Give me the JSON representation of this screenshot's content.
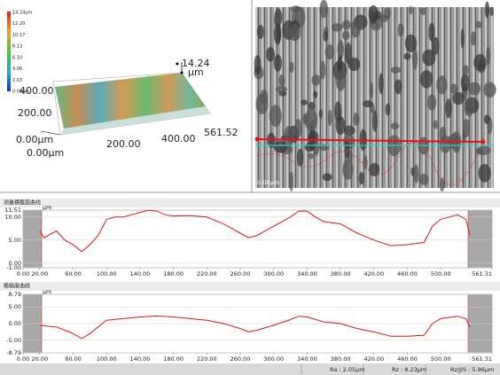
{
  "surface_view": {
    "colorbar_labels": [
      "14.24µm",
      "12.20",
      "10.17",
      "8.13",
      "6.10",
      "4.06",
      "2.03",
      "0.00µm"
    ],
    "z_max": "14.24",
    "z_unit": "µm",
    "y_axis_labels": [
      "400.00",
      "200.00",
      "0.00µm"
    ],
    "x_axis_labels": [
      "0.00µm",
      "200.00",
      "400.00"
    ],
    "x_end_label": "561.52"
  },
  "image_view": {
    "corner_label": "0.00µm"
  },
  "chart_data": [
    {
      "type": "line",
      "title": "测量横截面曲线",
      "y_unit": "µm",
      "color": "#d21a1a",
      "grid": true,
      "x": [
        20,
        25,
        30,
        40,
        50,
        60,
        70,
        80,
        90,
        100,
        110,
        120,
        130,
        140,
        150,
        160,
        170,
        180,
        200,
        220,
        240,
        260,
        270,
        280,
        300,
        320,
        330,
        340,
        350,
        360,
        380,
        400,
        420,
        440,
        460,
        480,
        490,
        500,
        510,
        520,
        530,
        535
      ],
      "values": [
        7,
        5.5,
        6,
        7,
        5,
        4,
        2.5,
        4,
        6,
        9.5,
        10,
        10,
        10.5,
        11,
        11.5,
        11.3,
        10.5,
        10.2,
        10.3,
        10,
        8.5,
        6.5,
        5.5,
        6,
        8,
        10,
        11.3,
        11.3,
        10,
        9,
        8.5,
        6.5,
        5,
        3.8,
        4,
        4.5,
        8,
        9.5,
        10,
        10.5,
        9.5,
        6
      ],
      "xlim": [
        0,
        561.31
      ],
      "ylim": [
        -1,
        11.51
      ],
      "yticks": [
        {
          "value": 11.51,
          "label": "11.51"
        },
        {
          "value": 10,
          "label": "10.00"
        },
        {
          "value": 5,
          "label": "5.00"
        },
        {
          "value": 0,
          "label": "0.00"
        },
        {
          "value": -1,
          "label": "-1.00"
        }
      ],
      "xticks": [
        {
          "value": 0,
          "label": "0.00"
        },
        {
          "value": 20,
          "label": "20.00"
        },
        {
          "value": 60,
          "label": "60.00"
        },
        {
          "value": 100,
          "label": "100.00"
        },
        {
          "value": 140,
          "label": "140.00"
        },
        {
          "value": 180,
          "label": "180.00"
        },
        {
          "value": 220,
          "label": "220.00"
        },
        {
          "value": 260,
          "label": "260.00"
        },
        {
          "value": 300,
          "label": "300.00"
        },
        {
          "value": 340,
          "label": "340.00"
        },
        {
          "value": 380,
          "label": "380.00"
        },
        {
          "value": 420,
          "label": "420.00"
        },
        {
          "value": 460,
          "label": "460.00"
        },
        {
          "value": 500,
          "label": "500.00"
        },
        {
          "value": 561.31,
          "label": "561.31"
        }
      ]
    },
    {
      "type": "line",
      "title": "粗糙度曲线",
      "y_unit": "µm",
      "color": "#d21a1a",
      "grid": true,
      "x": [
        20,
        30,
        40,
        50,
        60,
        70,
        80,
        100,
        120,
        140,
        160,
        180,
        200,
        220,
        240,
        260,
        270,
        280,
        300,
        320,
        330,
        340,
        360,
        380,
        400,
        420,
        440,
        460,
        480,
        490,
        500,
        520,
        530,
        535
      ],
      "values": [
        -0.5,
        -0.8,
        -1,
        -2,
        -3,
        -4.5,
        -3,
        1,
        1.5,
        2,
        2.3,
        2,
        1.5,
        1,
        0,
        -1.5,
        -2.5,
        -2,
        -0.5,
        1.2,
        2.2,
        2,
        0.5,
        0,
        -1.5,
        -2.5,
        -3.8,
        -3.8,
        -3.5,
        0,
        1.5,
        2.2,
        1.5,
        -1
      ],
      "xlim": [
        0,
        561.31
      ],
      "ylim": [
        -8.79,
        8.79
      ],
      "yticks": [
        {
          "value": 8.79,
          "label": "8.79"
        },
        {
          "value": 5,
          "label": "5.00"
        },
        {
          "value": 0,
          "label": "0.00"
        },
        {
          "value": -5,
          "label": "-5.00"
        },
        {
          "value": -8.79,
          "label": "-8.79"
        }
      ],
      "xticks": [
        {
          "value": 0,
          "label": "0.00"
        },
        {
          "value": 20,
          "label": "20.00"
        },
        {
          "value": 60,
          "label": "60.00"
        },
        {
          "value": 100,
          "label": "100.00"
        },
        {
          "value": 140,
          "label": "140.00"
        },
        {
          "value": 180,
          "label": "180.00"
        },
        {
          "value": 220,
          "label": "220.00"
        },
        {
          "value": 260,
          "label": "260.00"
        },
        {
          "value": 300,
          "label": "300.00"
        },
        {
          "value": 340,
          "label": "340.00"
        },
        {
          "value": 380,
          "label": "380.00"
        },
        {
          "value": 420,
          "label": "420.00"
        },
        {
          "value": 460,
          "label": "460.00"
        },
        {
          "value": 500,
          "label": "500.00"
        },
        {
          "value": 561.31,
          "label": "561.31"
        }
      ]
    }
  ],
  "status_bar": {
    "ra": "Ra : 2.05µm",
    "rz": "Rz : 8.23µm",
    "rz_jis": "Rz/JIS : 5.96µm"
  }
}
